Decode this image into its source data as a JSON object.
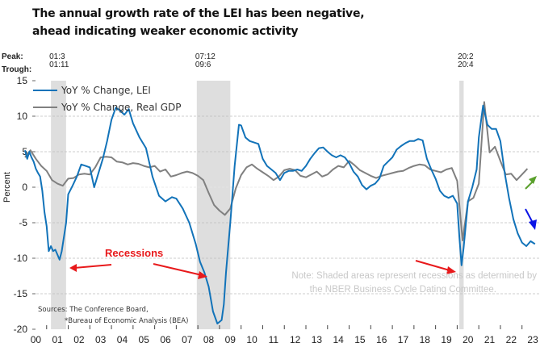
{
  "title_lines": [
    "The annual growth rate of the LEI has been negative,",
    "ahead  indicating weaker economic activity"
  ],
  "chart_data": {
    "type": "line",
    "title": "The annual growth rate of the LEI has been negative, ahead indicating weaker economic activity",
    "xlabel": "",
    "ylabel": "Percent",
    "ylim": [
      -20,
      15
    ],
    "yticks": [
      15,
      10,
      5,
      0,
      -5,
      -10,
      -15,
      -20
    ],
    "xlim": [
      2000,
      2023.6
    ],
    "xtick_labels": [
      "00",
      "01",
      "02",
      "03",
      "04",
      "05",
      "06",
      "07",
      "08",
      "09",
      "10",
      "11",
      "12",
      "13",
      "14",
      "15",
      "16",
      "17",
      "18",
      "19",
      "20",
      "21",
      "22",
      "23"
    ],
    "grid": "horizontal-dashed",
    "legend": {
      "placement": "top-left",
      "entries": [
        "YoY % Change, LEI",
        "YoY % Change, Real GDP"
      ]
    },
    "peak_trough": {
      "peak_label": "Peak:",
      "trough_label": "Trough:",
      "recessions": [
        {
          "peak": "01:3",
          "trough": "01:11",
          "start": 2001.2,
          "end": 2001.9
        },
        {
          "peak": "07:12",
          "trough": "09:6",
          "start": 2007.95,
          "end": 2009.5
        },
        {
          "peak": "20:2",
          "trough": "20:4",
          "start": 2020.1,
          "end": 2020.3
        }
      ]
    },
    "series": [
      {
        "name": "YoY % Change, LEI",
        "color": "#1273b9",
        "x": [
          2000.0,
          2000.1,
          2000.2,
          2000.3,
          2000.4,
          2000.5,
          2000.6,
          2000.7,
          2000.8,
          2000.9,
          2001.0,
          2001.1,
          2001.2,
          2001.3,
          2001.4,
          2001.5,
          2001.6,
          2001.7,
          2001.8,
          2001.9,
          2002.0,
          2002.2,
          2002.4,
          2002.6,
          2002.8,
          2003.0,
          2003.2,
          2003.4,
          2003.6,
          2003.8,
          2004.0,
          2004.2,
          2004.4,
          2004.6,
          2004.8,
          2005.0,
          2005.3,
          2005.6,
          2005.9,
          2006.2,
          2006.5,
          2006.8,
          2007.0,
          2007.3,
          2007.6,
          2007.9,
          2008.1,
          2008.3,
          2008.5,
          2008.7,
          2008.9,
          2009.1,
          2009.2,
          2009.3,
          2009.5,
          2009.7,
          2009.9,
          2010.0,
          2010.2,
          2010.4,
          2010.6,
          2010.8,
          2011.0,
          2011.2,
          2011.4,
          2011.6,
          2011.8,
          2012.0,
          2012.2,
          2012.4,
          2012.6,
          2012.8,
          2013.0,
          2013.2,
          2013.4,
          2013.6,
          2013.8,
          2014.0,
          2014.2,
          2014.4,
          2014.6,
          2014.8,
          2015.0,
          2015.2,
          2015.4,
          2015.6,
          2015.8,
          2016.0,
          2016.2,
          2016.4,
          2016.6,
          2016.8,
          2017.0,
          2017.2,
          2017.4,
          2017.6,
          2017.8,
          2018.0,
          2018.2,
          2018.4,
          2018.6,
          2018.8,
          2019.0,
          2019.2,
          2019.4,
          2019.6,
          2019.8,
          2020.0,
          2020.1,
          2020.2,
          2020.3,
          2020.5,
          2020.7,
          2020.9,
          2021.0,
          2021.2,
          2021.4,
          2021.6,
          2021.8,
          2022.0,
          2022.2,
          2022.4,
          2022.6,
          2022.8,
          2023.0,
          2023.2,
          2023.4,
          2023.6
        ],
        "values": [
          5.2,
          4.0,
          5.0,
          4.2,
          3.6,
          2.6,
          2.0,
          1.5,
          -0.5,
          -3.5,
          -5.5,
          -9.0,
          -8.3,
          -9.0,
          -8.8,
          -9.5,
          -10.2,
          -9.0,
          -7.0,
          -5.0,
          -1.0,
          0.2,
          1.5,
          3.2,
          3.0,
          2.8,
          0.0,
          2.0,
          4.0,
          6.5,
          9.5,
          11.2,
          10.8,
          10.2,
          11.0,
          9.0,
          7.0,
          5.5,
          1.5,
          -1.2,
          -2.0,
          -1.4,
          -1.6,
          -3.0,
          -5.0,
          -8.0,
          -10.5,
          -12.0,
          -14.0,
          -17.5,
          -19.2,
          -18.7,
          -16.5,
          -12.0,
          -5.0,
          3.0,
          8.8,
          8.7,
          7.0,
          6.5,
          6.3,
          6.1,
          4.0,
          3.0,
          2.5,
          2.0,
          1.0,
          2.0,
          2.3,
          2.3,
          2.5,
          2.3,
          3.0,
          4.0,
          4.8,
          5.5,
          5.6,
          5.0,
          4.5,
          4.2,
          4.5,
          4.2,
          3.4,
          2.2,
          1.5,
          0.3,
          -0.3,
          0.2,
          0.5,
          1.2,
          3.0,
          3.6,
          4.2,
          5.3,
          5.8,
          6.2,
          6.5,
          6.5,
          6.8,
          6.6,
          4.0,
          2.5,
          1.2,
          -0.5,
          -1.2,
          -1.5,
          -1.2,
          -2.3,
          -7.0,
          -11.0,
          -8.5,
          -2.0,
          0.0,
          2.5,
          7.0,
          11.5,
          8.8,
          8.2,
          8.2,
          6.5,
          2.0,
          -1.5,
          -4.5,
          -6.5,
          -7.8,
          -8.3,
          -7.6,
          -8.0
        ]
      },
      {
        "name": "YoY % Change, Real GDP",
        "color": "#808080",
        "x": [
          2000.0,
          2000.25,
          2000.5,
          2000.75,
          2001.0,
          2001.25,
          2001.5,
          2001.75,
          2002.0,
          2002.25,
          2002.5,
          2002.75,
          2003.0,
          2003.25,
          2003.5,
          2003.75,
          2004.0,
          2004.25,
          2004.5,
          2004.75,
          2005.0,
          2005.25,
          2005.5,
          2005.75,
          2006.0,
          2006.25,
          2006.5,
          2006.75,
          2007.0,
          2007.25,
          2007.5,
          2007.75,
          2008.0,
          2008.25,
          2008.5,
          2008.75,
          2009.0,
          2009.25,
          2009.5,
          2009.75,
          2010.0,
          2010.25,
          2010.5,
          2010.75,
          2011.0,
          2011.25,
          2011.5,
          2011.75,
          2012.0,
          2012.25,
          2012.5,
          2012.75,
          2013.0,
          2013.25,
          2013.5,
          2013.75,
          2014.0,
          2014.25,
          2014.5,
          2014.75,
          2015.0,
          2015.25,
          2015.5,
          2015.75,
          2016.0,
          2016.25,
          2016.5,
          2016.75,
          2017.0,
          2017.25,
          2017.5,
          2017.75,
          2018.0,
          2018.25,
          2018.5,
          2018.75,
          2019.0,
          2019.25,
          2019.5,
          2019.75,
          2020.0,
          2020.25,
          2020.5,
          2020.75,
          2021.0,
          2021.25,
          2021.5,
          2021.75,
          2022.0,
          2022.25,
          2022.5,
          2022.75,
          2023.0,
          2023.25
        ],
        "values": [
          4.2,
          5.2,
          4.0,
          3.0,
          2.3,
          1.0,
          0.5,
          0.2,
          1.2,
          1.3,
          1.8,
          1.9,
          1.8,
          2.8,
          4.2,
          4.3,
          4.2,
          3.6,
          3.5,
          3.2,
          3.4,
          3.3,
          3.0,
          2.8,
          3.0,
          2.2,
          2.5,
          1.5,
          1.7,
          2.0,
          2.2,
          2.0,
          1.6,
          1.0,
          -0.8,
          -2.5,
          -3.3,
          -3.9,
          -3.0,
          -0.2,
          1.7,
          2.8,
          3.2,
          2.6,
          2.1,
          1.6,
          1.0,
          1.5,
          2.4,
          2.6,
          2.4,
          1.6,
          1.4,
          1.8,
          2.2,
          1.5,
          1.8,
          2.5,
          3.0,
          2.8,
          3.7,
          3.1,
          2.4,
          2.0,
          1.6,
          1.3,
          1.6,
          1.8,
          2.0,
          2.2,
          2.3,
          2.7,
          3.0,
          3.2,
          3.1,
          2.5,
          2.3,
          2.1,
          2.5,
          2.7,
          0.9,
          -7.5,
          -2.0,
          -1.5,
          0.5,
          12.0,
          4.9,
          5.7,
          3.7,
          1.8,
          1.9,
          1.0,
          1.8,
          2.6
        ]
      }
    ],
    "annotations": [
      {
        "text": "Recessions",
        "color": "#e8191b"
      },
      {
        "text": "Note: Shaded areas represent recessions as determined by"
      },
      {
        "text": "the NBER Business Cycle Dating Committee."
      },
      {
        "text": "Sources: The Conference Board,"
      },
      {
        "text": "*Bureau of Economic Analysis (BEA)"
      }
    ],
    "trend_arrows": [
      {
        "series": "YoY % Change, Real GDP",
        "direction": "up",
        "color": "#5aa02c"
      },
      {
        "series": "YoY % Change, LEI",
        "direction": "down",
        "color": "#0a14e6"
      }
    ]
  }
}
